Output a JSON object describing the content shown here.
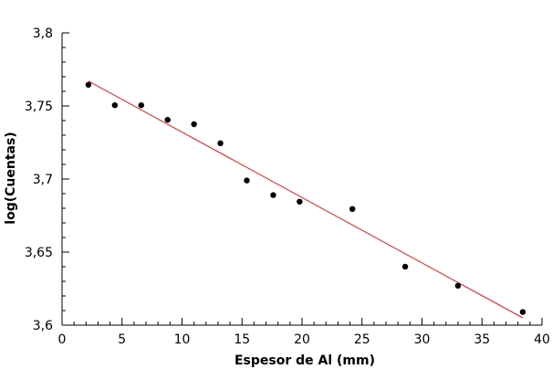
{
  "chart_data": {
    "type": "scatter",
    "title": "",
    "xlabel": "Espesor de Al (mm)",
    "ylabel": "log(Cuentas)",
    "xlim": [
      0,
      40
    ],
    "ylim": [
      3.6,
      3.8
    ],
    "x_ticks": [
      0,
      5,
      10,
      15,
      20,
      25,
      30,
      35,
      40
    ],
    "x_tick_labels": [
      "0",
      "5",
      "10",
      "15",
      "20",
      "25",
      "30",
      "35",
      "40"
    ],
    "y_ticks": [
      3.6,
      3.65,
      3.7,
      3.75,
      3.8
    ],
    "y_tick_labels": [
      "3,6",
      "3,65",
      "3,7",
      "3,75",
      "3,8"
    ],
    "grid": false,
    "legend": "none",
    "series": [
      {
        "color": "#000000",
        "x": [
          2.2,
          4.4,
          6.6,
          8.8,
          11.0,
          13.2,
          15.4,
          17.6,
          19.8,
          24.2,
          28.6,
          33.0,
          38.4
        ],
        "y": [
          3.7645,
          3.7505,
          3.7505,
          3.7405,
          3.7375,
          3.7245,
          3.699,
          3.689,
          3.6845,
          3.6795,
          3.64,
          3.627,
          3.609
        ]
      }
    ],
    "fit_line": {
      "color": "#e41a1c",
      "x": [
        2.2,
        38.4
      ],
      "y": [
        3.767,
        3.605
      ]
    }
  }
}
